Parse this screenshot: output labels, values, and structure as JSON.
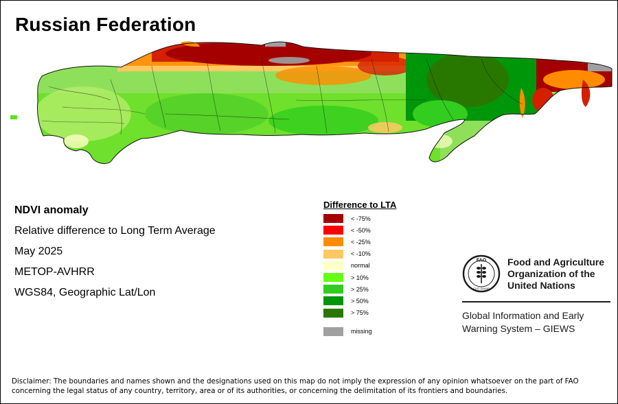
{
  "title": "Russian Federation",
  "info": {
    "heading": "NDVI anomaly",
    "description": "Relative difference to Long Term Average",
    "period": "May 2025",
    "sensor": "METOP-AVHRR",
    "projection": "WGS84, Geographic Lat/Lon"
  },
  "legend": {
    "title": "Difference to LTA",
    "items": [
      {
        "label": "< -75%",
        "color": "#a50000"
      },
      {
        "label": "< -50%",
        "color": "#ff0000"
      },
      {
        "label": "< -25%",
        "color": "#ff8c00"
      },
      {
        "label": "< -10%",
        "color": "#ffc864"
      },
      {
        "label": "normal",
        "color": "#ffffc8"
      },
      {
        "label": "> 10%",
        "color": "#64ff14"
      },
      {
        "label": "> 25%",
        "color": "#32cd1e"
      },
      {
        "label": "> 50%",
        "color": "#00960a"
      },
      {
        "label": "> 75%",
        "color": "#287800"
      }
    ],
    "missing": {
      "label": "missing",
      "color": "#a0a0a0"
    }
  },
  "organization": {
    "name_line1": "Food and Agriculture",
    "name_line2": "Organization of the",
    "name_line3": "United Nations",
    "logo_letters": "FAO",
    "logo_motto": "FIAT PANIS",
    "system_line1": "Global Information and Early",
    "system_line2": "Warning System – GIEWS"
  },
  "disclaimer": "Disclaimer: The boundaries and names shown and the designations used on this map do not imply the expression of any opinion whatsoever on the part of FAO concerning the legal status of any country, territory, area or of its authorities, or concerning the delimitation of its frontiers and boundaries."
}
